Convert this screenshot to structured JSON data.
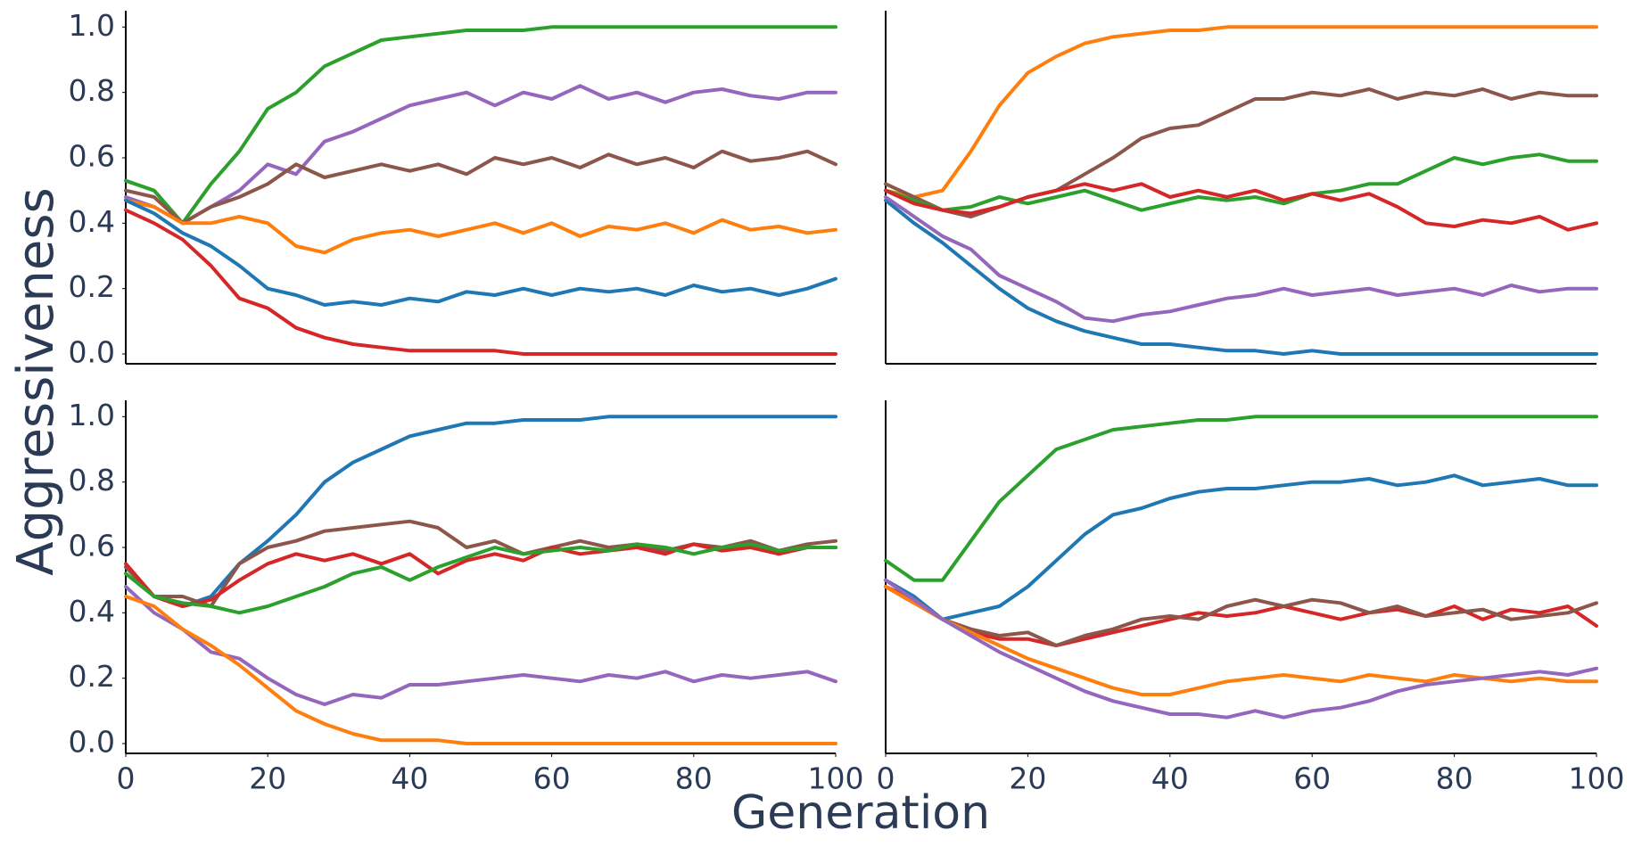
{
  "ylabel": "Aggressiveness",
  "xlabel": "Generation",
  "chart_data": [
    {
      "type": "line",
      "xlim": [
        0,
        100
      ],
      "ylim": [
        -0.03,
        1.05
      ],
      "yticks": [
        {
          "value": 0,
          "label": "0.0"
        },
        0.2,
        0.4,
        0.6,
        0.8,
        {
          "value": 1,
          "label": "1.0"
        }
      ],
      "x": [
        0,
        4,
        8,
        12,
        16,
        20,
        24,
        28,
        32,
        36,
        40,
        44,
        48,
        52,
        56,
        60,
        64,
        68,
        72,
        76,
        80,
        84,
        88,
        92,
        96,
        100
      ],
      "series": [
        {
          "color": "#2ca02c",
          "values": [
            0.53,
            0.5,
            0.4,
            0.52,
            0.62,
            0.75,
            0.8,
            0.88,
            0.92,
            0.96,
            0.97,
            0.98,
            0.99,
            0.99,
            0.99,
            1.0,
            1.0,
            1.0,
            1.0,
            1.0,
            1.0,
            1.0,
            1.0,
            1.0,
            1.0,
            1.0
          ]
        },
        {
          "color": "#9467bd",
          "values": [
            0.48,
            0.45,
            0.4,
            0.45,
            0.5,
            0.58,
            0.55,
            0.65,
            0.68,
            0.72,
            0.76,
            0.78,
            0.8,
            0.76,
            0.8,
            0.78,
            0.82,
            0.78,
            0.8,
            0.77,
            0.8,
            0.81,
            0.79,
            0.78,
            0.8,
            0.8
          ]
        },
        {
          "color": "#8c564b",
          "values": [
            0.5,
            0.48,
            0.4,
            0.45,
            0.48,
            0.52,
            0.58,
            0.54,
            0.56,
            0.58,
            0.56,
            0.58,
            0.55,
            0.6,
            0.58,
            0.6,
            0.57,
            0.61,
            0.58,
            0.6,
            0.57,
            0.62,
            0.59,
            0.6,
            0.62,
            0.58
          ]
        },
        {
          "color": "#ff7f0e",
          "values": [
            0.47,
            0.45,
            0.4,
            0.4,
            0.42,
            0.4,
            0.33,
            0.31,
            0.35,
            0.37,
            0.38,
            0.36,
            0.38,
            0.4,
            0.37,
            0.4,
            0.36,
            0.39,
            0.38,
            0.4,
            0.37,
            0.41,
            0.38,
            0.39,
            0.37,
            0.38
          ]
        },
        {
          "color": "#1f77b4",
          "values": [
            0.47,
            0.43,
            0.37,
            0.33,
            0.27,
            0.2,
            0.18,
            0.15,
            0.16,
            0.15,
            0.17,
            0.16,
            0.19,
            0.18,
            0.2,
            0.18,
            0.2,
            0.19,
            0.2,
            0.18,
            0.21,
            0.19,
            0.2,
            0.18,
            0.2,
            0.23
          ]
        },
        {
          "color": "#d62728",
          "values": [
            0.44,
            0.4,
            0.35,
            0.27,
            0.17,
            0.14,
            0.08,
            0.05,
            0.03,
            0.02,
            0.01,
            0.01,
            0.01,
            0.01,
            0,
            0,
            0,
            0,
            0,
            0,
            0,
            0,
            0,
            0,
            0,
            0
          ]
        }
      ]
    },
    {
      "type": "line",
      "xlim": [
        0,
        100
      ],
      "ylim": [
        -0.03,
        1.05
      ],
      "x": [
        0,
        4,
        8,
        12,
        16,
        20,
        24,
        28,
        32,
        36,
        40,
        44,
        48,
        52,
        56,
        60,
        64,
        68,
        72,
        76,
        80,
        84,
        88,
        92,
        96,
        100
      ],
      "series": [
        {
          "color": "#ff7f0e",
          "values": [
            0.5,
            0.48,
            0.5,
            0.62,
            0.76,
            0.86,
            0.91,
            0.95,
            0.97,
            0.98,
            0.99,
            0.99,
            1.0,
            1.0,
            1.0,
            1.0,
            1.0,
            1.0,
            1.0,
            1.0,
            1.0,
            1.0,
            1.0,
            1.0,
            1.0,
            1.0
          ]
        },
        {
          "color": "#8c564b",
          "values": [
            0.52,
            0.48,
            0.44,
            0.42,
            0.45,
            0.48,
            0.5,
            0.55,
            0.6,
            0.66,
            0.69,
            0.7,
            0.74,
            0.78,
            0.78,
            0.8,
            0.79,
            0.81,
            0.78,
            0.8,
            0.79,
            0.81,
            0.78,
            0.8,
            0.79,
            0.79
          ]
        },
        {
          "color": "#2ca02c",
          "values": [
            0.5,
            0.47,
            0.44,
            0.45,
            0.48,
            0.46,
            0.48,
            0.5,
            0.47,
            0.44,
            0.46,
            0.48,
            0.47,
            0.48,
            0.46,
            0.49,
            0.5,
            0.52,
            0.52,
            0.56,
            0.6,
            0.58,
            0.6,
            0.61,
            0.59,
            0.59
          ]
        },
        {
          "color": "#d62728",
          "values": [
            0.5,
            0.46,
            0.44,
            0.43,
            0.45,
            0.48,
            0.5,
            0.52,
            0.5,
            0.52,
            0.48,
            0.5,
            0.48,
            0.5,
            0.47,
            0.49,
            0.47,
            0.49,
            0.45,
            0.4,
            0.39,
            0.41,
            0.4,
            0.42,
            0.38,
            0.4
          ]
        },
        {
          "color": "#1f77b4",
          "values": [
            0.47,
            0.4,
            0.34,
            0.27,
            0.2,
            0.14,
            0.1,
            0.07,
            0.05,
            0.03,
            0.03,
            0.02,
            0.01,
            0.01,
            0,
            0.01,
            0,
            0,
            0,
            0,
            0,
            0,
            0,
            0,
            0,
            0
          ]
        },
        {
          "color": "#9467bd",
          "values": [
            0.48,
            0.42,
            0.36,
            0.32,
            0.24,
            0.2,
            0.16,
            0.11,
            0.1,
            0.12,
            0.13,
            0.15,
            0.17,
            0.18,
            0.2,
            0.18,
            0.19,
            0.2,
            0.18,
            0.19,
            0.2,
            0.18,
            0.21,
            0.19,
            0.2,
            0.2
          ]
        }
      ]
    },
    {
      "type": "line",
      "xlim": [
        0,
        100
      ],
      "ylim": [
        -0.03,
        1.05
      ],
      "yticks": [
        {
          "value": 0,
          "label": "0.0"
        },
        0.2,
        0.4,
        0.6,
        0.8,
        {
          "value": 1,
          "label": "1.0"
        }
      ],
      "xticks": [
        0,
        20,
        40,
        60,
        80,
        100
      ],
      "x": [
        0,
        4,
        8,
        12,
        16,
        20,
        24,
        28,
        32,
        36,
        40,
        44,
        48,
        52,
        56,
        60,
        64,
        68,
        72,
        76,
        80,
        84,
        88,
        92,
        96,
        100
      ],
      "series": [
        {
          "color": "#1f77b4",
          "values": [
            0.54,
            0.45,
            0.42,
            0.45,
            0.55,
            0.62,
            0.7,
            0.8,
            0.86,
            0.9,
            0.94,
            0.96,
            0.98,
            0.98,
            0.99,
            0.99,
            0.99,
            1.0,
            1.0,
            1.0,
            1.0,
            1.0,
            1.0,
            1.0,
            1.0,
            1.0
          ]
        },
        {
          "color": "#8c564b",
          "values": [
            0.54,
            0.45,
            0.45,
            0.42,
            0.55,
            0.6,
            0.62,
            0.65,
            0.66,
            0.67,
            0.68,
            0.66,
            0.6,
            0.62,
            0.58,
            0.6,
            0.62,
            0.6,
            0.61,
            0.59,
            0.61,
            0.6,
            0.62,
            0.59,
            0.61,
            0.62
          ]
        },
        {
          "color": "#d62728",
          "values": [
            0.55,
            0.45,
            0.42,
            0.44,
            0.5,
            0.55,
            0.58,
            0.56,
            0.58,
            0.55,
            0.58,
            0.52,
            0.56,
            0.58,
            0.56,
            0.6,
            0.58,
            0.59,
            0.6,
            0.58,
            0.61,
            0.59,
            0.6,
            0.58,
            0.6,
            0.6
          ]
        },
        {
          "color": "#2ca02c",
          "values": [
            0.52,
            0.45,
            0.43,
            0.42,
            0.4,
            0.42,
            0.45,
            0.48,
            0.52,
            0.54,
            0.5,
            0.54,
            0.57,
            0.6,
            0.58,
            0.59,
            0.6,
            0.59,
            0.61,
            0.6,
            0.58,
            0.6,
            0.61,
            0.59,
            0.6,
            0.6
          ]
        },
        {
          "color": "#9467bd",
          "values": [
            0.48,
            0.4,
            0.35,
            0.28,
            0.26,
            0.2,
            0.15,
            0.12,
            0.15,
            0.14,
            0.18,
            0.18,
            0.19,
            0.2,
            0.21,
            0.2,
            0.19,
            0.21,
            0.2,
            0.22,
            0.19,
            0.21,
            0.2,
            0.21,
            0.22,
            0.19
          ]
        },
        {
          "color": "#ff7f0e",
          "values": [
            0.45,
            0.42,
            0.35,
            0.3,
            0.24,
            0.17,
            0.1,
            0.06,
            0.03,
            0.01,
            0.01,
            0.01,
            0,
            0,
            0,
            0,
            0,
            0,
            0,
            0,
            0,
            0,
            0,
            0,
            0,
            0
          ]
        }
      ]
    },
    {
      "type": "line",
      "xlim": [
        0,
        100
      ],
      "ylim": [
        -0.03,
        1.05
      ],
      "xticks": [
        0,
        20,
        40,
        60,
        80,
        100
      ],
      "x": [
        0,
        4,
        8,
        12,
        16,
        20,
        24,
        28,
        32,
        36,
        40,
        44,
        48,
        52,
        56,
        60,
        64,
        68,
        72,
        76,
        80,
        84,
        88,
        92,
        96,
        100
      ],
      "series": [
        {
          "color": "#2ca02c",
          "values": [
            0.56,
            0.5,
            0.5,
            0.62,
            0.74,
            0.82,
            0.9,
            0.93,
            0.96,
            0.97,
            0.98,
            0.99,
            0.99,
            1.0,
            1.0,
            1.0,
            1.0,
            1.0,
            1.0,
            1.0,
            1.0,
            1.0,
            1.0,
            1.0,
            1.0,
            1.0
          ]
        },
        {
          "color": "#1f77b4",
          "values": [
            0.5,
            0.45,
            0.38,
            0.4,
            0.42,
            0.48,
            0.56,
            0.64,
            0.7,
            0.72,
            0.75,
            0.77,
            0.78,
            0.78,
            0.79,
            0.8,
            0.8,
            0.81,
            0.79,
            0.8,
            0.82,
            0.79,
            0.8,
            0.81,
            0.79,
            0.79
          ]
        },
        {
          "color": "#d62728",
          "values": [
            0.48,
            0.44,
            0.38,
            0.34,
            0.32,
            0.32,
            0.3,
            0.32,
            0.34,
            0.36,
            0.38,
            0.4,
            0.39,
            0.4,
            0.42,
            0.4,
            0.38,
            0.4,
            0.41,
            0.39,
            0.42,
            0.38,
            0.41,
            0.4,
            0.42,
            0.36
          ]
        },
        {
          "color": "#8c564b",
          "values": [
            0.48,
            0.43,
            0.38,
            0.35,
            0.33,
            0.34,
            0.3,
            0.33,
            0.35,
            0.38,
            0.39,
            0.38,
            0.42,
            0.44,
            0.42,
            0.44,
            0.43,
            0.4,
            0.42,
            0.39,
            0.4,
            0.41,
            0.38,
            0.39,
            0.4,
            0.43
          ]
        },
        {
          "color": "#ff7f0e",
          "values": [
            0.48,
            0.43,
            0.38,
            0.34,
            0.3,
            0.26,
            0.23,
            0.2,
            0.17,
            0.15,
            0.15,
            0.17,
            0.19,
            0.2,
            0.21,
            0.2,
            0.19,
            0.21,
            0.2,
            0.19,
            0.21,
            0.2,
            0.19,
            0.2,
            0.19,
            0.19
          ]
        },
        {
          "color": "#9467bd",
          "values": [
            0.5,
            0.44,
            0.38,
            0.33,
            0.28,
            0.24,
            0.2,
            0.16,
            0.13,
            0.11,
            0.09,
            0.09,
            0.08,
            0.1,
            0.08,
            0.1,
            0.11,
            0.13,
            0.16,
            0.18,
            0.19,
            0.2,
            0.21,
            0.22,
            0.21,
            0.23
          ]
        }
      ]
    }
  ]
}
